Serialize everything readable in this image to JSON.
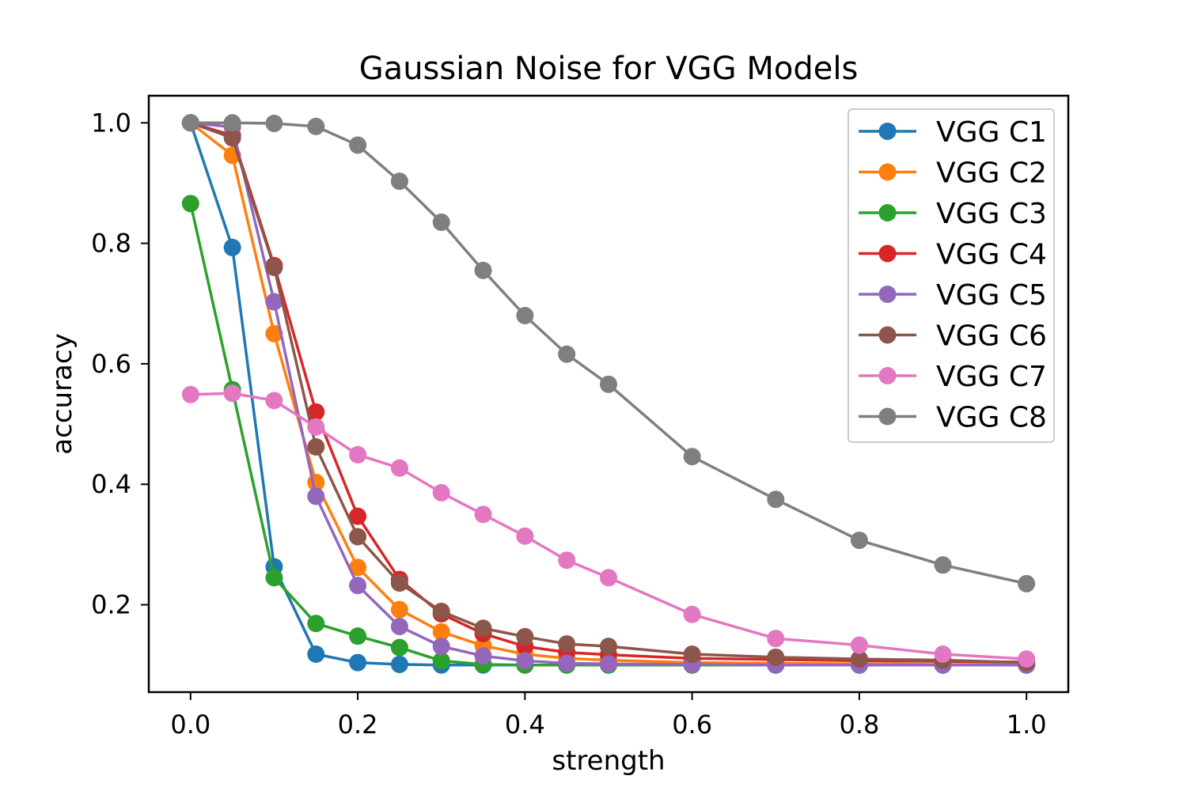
{
  "chart_data": {
    "type": "line",
    "title": "Gaussian Noise for VGG Models",
    "xlabel": "strength",
    "ylabel": "accuracy",
    "xlim": [
      -0.05,
      1.05
    ],
    "ylim": [
      0.055,
      1.045
    ],
    "xticks": [
      0.0,
      0.2,
      0.4,
      0.6,
      0.8,
      1.0
    ],
    "xtick_labels": [
      "0.0",
      "0.2",
      "0.4",
      "0.6",
      "0.8",
      "1.0"
    ],
    "yticks": [
      0.2,
      0.4,
      0.6,
      0.8,
      1.0
    ],
    "ytick_labels": [
      "0.2",
      "0.4",
      "0.6",
      "0.8",
      "1.0"
    ],
    "grid": false,
    "legend_position": "top-right",
    "x": [
      0.0,
      0.05,
      0.1,
      0.15,
      0.2,
      0.25,
      0.3,
      0.35,
      0.4,
      0.45,
      0.5,
      0.6,
      0.7,
      0.8,
      0.9,
      1.0
    ],
    "series": [
      {
        "name": "VGG C1",
        "color": "#1f77b4",
        "values": [
          1.0,
          0.793,
          0.263,
          0.118,
          0.104,
          0.101,
          0.1,
          0.1,
          0.1,
          0.1,
          0.1,
          0.1,
          0.1,
          0.1,
          0.1,
          0.1
        ]
      },
      {
        "name": "VGG C2",
        "color": "#ff7f0e",
        "values": [
          1.0,
          0.946,
          0.65,
          0.403,
          0.262,
          0.192,
          0.155,
          0.132,
          0.118,
          0.111,
          0.108,
          0.104,
          0.103,
          0.102,
          0.101,
          0.101
        ]
      },
      {
        "name": "VGG C3",
        "color": "#2ca02c",
        "values": [
          0.866,
          0.557,
          0.245,
          0.169,
          0.148,
          0.129,
          0.107,
          0.101,
          0.1,
          0.1,
          0.1,
          0.1,
          0.1,
          0.1,
          0.1,
          0.1
        ]
      },
      {
        "name": "VGG C4",
        "color": "#d62728",
        "values": [
          1.0,
          0.979,
          0.763,
          0.52,
          0.347,
          0.242,
          0.185,
          0.152,
          0.131,
          0.121,
          0.117,
          0.111,
          0.109,
          0.107,
          0.106,
          0.105
        ]
      },
      {
        "name": "VGG C5",
        "color": "#9467bd",
        "values": [
          1.0,
          0.993,
          0.703,
          0.38,
          0.232,
          0.164,
          0.131,
          0.115,
          0.107,
          0.103,
          0.102,
          0.101,
          0.1,
          0.1,
          0.1,
          0.1
        ]
      },
      {
        "name": "VGG C6",
        "color": "#8c564b",
        "values": [
          1.0,
          0.975,
          0.76,
          0.462,
          0.313,
          0.236,
          0.189,
          0.161,
          0.147,
          0.135,
          0.131,
          0.118,
          0.113,
          0.11,
          0.108,
          0.104
        ]
      },
      {
        "name": "VGG C7",
        "color": "#e377c2",
        "values": [
          0.549,
          0.551,
          0.539,
          0.495,
          0.449,
          0.427,
          0.386,
          0.35,
          0.314,
          0.274,
          0.245,
          0.184,
          0.144,
          0.133,
          0.118,
          0.11
        ]
      },
      {
        "name": "VGG C8",
        "color": "#7f7f7f",
        "values": [
          1.0,
          1.0,
          0.999,
          0.994,
          0.963,
          0.903,
          0.835,
          0.755,
          0.68,
          0.616,
          0.566,
          0.446,
          0.375,
          0.307,
          0.266,
          0.235
        ]
      }
    ]
  }
}
